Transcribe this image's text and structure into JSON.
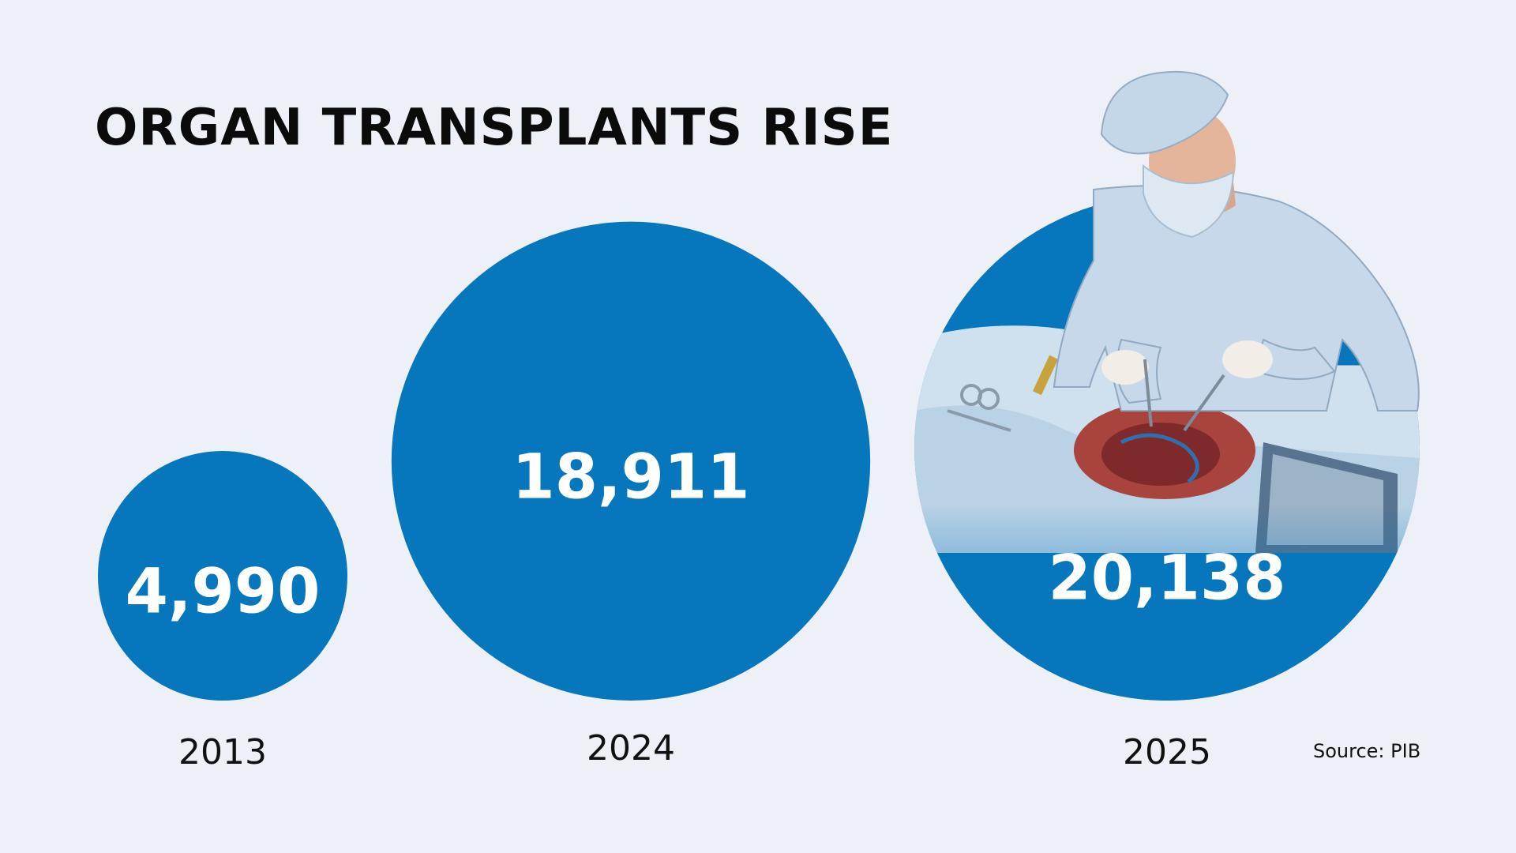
{
  "title": "ORGAN TRANSPLANTS RISE",
  "source": "Source: PIB",
  "colors": {
    "background": "#edf0f7",
    "bubble": "#0677bd",
    "value_text": "#ffffff",
    "label_text": "#111111"
  },
  "illustration": {
    "icon": "surgeon-performing-organ-transplant-illustration"
  },
  "chart_data": {
    "type": "bubble",
    "title": "ORGAN TRANSPLANTS RISE",
    "categories": [
      "2013",
      "2024",
      "2025"
    ],
    "values": [
      4990,
      18911,
      20138
    ],
    "value_labels": [
      "4,990",
      "18,911",
      "20,138"
    ],
    "grid": false,
    "legend": "none"
  }
}
